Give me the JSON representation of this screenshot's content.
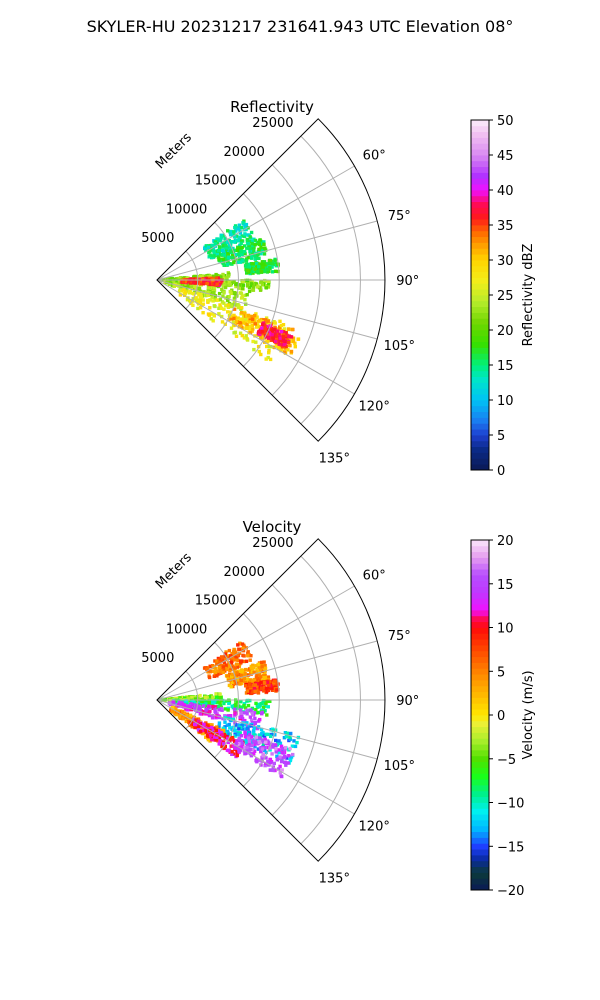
{
  "figure": {
    "title": "SKYLER-HU  20231217  231641.943 UTC Elevation 08°"
  },
  "colors": {
    "grid": "#b0b0b0",
    "frame": "#000000",
    "background": "#ffffff"
  },
  "chart_data": [
    {
      "type": "heatmap",
      "projection": "polar sector (PPI)",
      "title": "Reflectivity",
      "radial_axis_label": "Meters",
      "radial_ticks": [
        5000,
        10000,
        15000,
        20000,
        25000
      ],
      "radial_tick_labels": [
        "5000",
        "10000",
        "15000",
        "20000",
        "25000"
      ],
      "rlim": [
        0,
        28000
      ],
      "angular_range_deg": [
        45,
        135
      ],
      "angular_ticks_deg": [
        60,
        75,
        90,
        105,
        120,
        135
      ],
      "angular_tick_labels": [
        "60°",
        "75°",
        "90°",
        "105°",
        "120°",
        "135°"
      ],
      "grid": true,
      "colorbar": {
        "label": "Reflectivity dBZ",
        "range": [
          0,
          50
        ],
        "ticks": [
          0,
          5,
          10,
          15,
          20,
          25,
          30,
          35,
          40,
          45,
          50
        ],
        "tick_labels": [
          "0",
          "5",
          "10",
          "15",
          "20",
          "25",
          "30",
          "35",
          "40",
          "45",
          "50"
        ],
        "colormap_stops": [
          [
            0,
            "#0b1a55"
          ],
          [
            3,
            "#0a2a88"
          ],
          [
            5,
            "#1e3fd0"
          ],
          [
            7,
            "#1a7cf0"
          ],
          [
            10,
            "#00c2f5"
          ],
          [
            13,
            "#00e6c8"
          ],
          [
            15,
            "#00f07a"
          ],
          [
            18,
            "#38e000"
          ],
          [
            21,
            "#6fd600"
          ],
          [
            24,
            "#b5ec2b"
          ],
          [
            27,
            "#f3ee1a"
          ],
          [
            30,
            "#ffd400"
          ],
          [
            32,
            "#ffa300"
          ],
          [
            34,
            "#ff6a00"
          ],
          [
            36,
            "#ff1a1a"
          ],
          [
            38,
            "#ff0a55"
          ],
          [
            40,
            "#f010ff"
          ],
          [
            42,
            "#b030ff"
          ],
          [
            45,
            "#d98af2"
          ],
          [
            48,
            "#f2c0f2"
          ],
          [
            50,
            "#fbeefb"
          ]
        ]
      },
      "echo_regions": [
        {
          "az": [
            55,
            68
          ],
          "r": [
            7000,
            13000
          ],
          "value": 14
        },
        {
          "az": [
            68,
            78
          ],
          "r": [
            8000,
            14000
          ],
          "value": 16
        },
        {
          "az": [
            80,
            86
          ],
          "r": [
            11000,
            15000
          ],
          "value": 17
        },
        {
          "az": [
            84,
            92
          ],
          "r": [
            500,
            9000
          ],
          "value": 22
        },
        {
          "az": [
            90,
            96
          ],
          "r": [
            2000,
            14000
          ],
          "value": 22
        },
        {
          "az": [
            96,
            110
          ],
          "r": [
            1000,
            12000
          ],
          "value": 23
        },
        {
          "az": [
            108,
            126
          ],
          "r": [
            3000,
            17000
          ],
          "value": 27
        },
        {
          "az": [
            110,
            120
          ],
          "r": [
            10000,
            19000
          ],
          "value": 31
        },
        {
          "az": [
            88,
            95
          ],
          "r": [
            3000,
            8000
          ],
          "value": 36
        },
        {
          "az": [
            112,
            118
          ],
          "r": [
            14000,
            18000
          ],
          "value": 37
        }
      ]
    },
    {
      "type": "heatmap",
      "projection": "polar sector (PPI)",
      "title": "Velocity",
      "radial_axis_label": "Meters",
      "radial_ticks": [
        5000,
        10000,
        15000,
        20000,
        25000
      ],
      "radial_tick_labels": [
        "5000",
        "10000",
        "15000",
        "20000",
        "25000"
      ],
      "rlim": [
        0,
        28000
      ],
      "angular_range_deg": [
        45,
        135
      ],
      "angular_ticks_deg": [
        60,
        75,
        90,
        105,
        120,
        135
      ],
      "angular_tick_labels": [
        "60°",
        "75°",
        "90°",
        "105°",
        "120°",
        "135°"
      ],
      "grid": true,
      "colorbar": {
        "label": "Velocity (m/s)",
        "range": [
          -20,
          20
        ],
        "ticks": [
          -20,
          -15,
          -10,
          -5,
          0,
          5,
          10,
          15,
          20
        ],
        "tick_labels": [
          "−20",
          "−15",
          "−10",
          "−5",
          "0",
          "5",
          "10",
          "15",
          "20"
        ],
        "colormap_stops": [
          [
            -20,
            "#0b1a55"
          ],
          [
            -18,
            "#0b3a3a"
          ],
          [
            -16.5,
            "#0a2aa0"
          ],
          [
            -15,
            "#1e3fff"
          ],
          [
            -13,
            "#00b8ff"
          ],
          [
            -11,
            "#00f0f0"
          ],
          [
            -9,
            "#00f08a"
          ],
          [
            -7,
            "#1aff1a"
          ],
          [
            -5,
            "#52e000"
          ],
          [
            -3,
            "#a6ee2a"
          ],
          [
            -1,
            "#eaf035"
          ],
          [
            0,
            "#ffe800"
          ],
          [
            2,
            "#ffbf00"
          ],
          [
            4,
            "#ff9800"
          ],
          [
            6,
            "#ff6a00"
          ],
          [
            8,
            "#ff3b00"
          ],
          [
            10,
            "#ff0a0a"
          ],
          [
            11,
            "#ff0a55"
          ],
          [
            12,
            "#f010ff"
          ],
          [
            14,
            "#c038ff"
          ],
          [
            16,
            "#b64dff"
          ],
          [
            18,
            "#e59cef"
          ],
          [
            20,
            "#fbe6fb"
          ]
        ]
      },
      "echo_regions": [
        {
          "az": [
            55,
            68
          ],
          "r": [
            7000,
            13000
          ],
          "value": 6
        },
        {
          "az": [
            70,
            80
          ],
          "r": [
            9000,
            14000
          ],
          "value": 4
        },
        {
          "az": [
            80,
            86
          ],
          "r": [
            11000,
            15000
          ],
          "value": 8
        },
        {
          "az": [
            84,
            92
          ],
          "r": [
            500,
            8000
          ],
          "value": -4
        },
        {
          "az": [
            90,
            98
          ],
          "r": [
            2000,
            14000
          ],
          "value": -8
        },
        {
          "az": [
            96,
            108
          ],
          "r": [
            1500,
            13000
          ],
          "value": 14
        },
        {
          "az": [
            104,
            116
          ],
          "r": [
            8000,
            18000
          ],
          "value": -12
        },
        {
          "az": [
            114,
            128
          ],
          "r": [
            2000,
            9000
          ],
          "value": 4
        },
        {
          "az": [
            116,
            126
          ],
          "r": [
            5000,
            12000
          ],
          "value": 11
        },
        {
          "az": [
            110,
            122
          ],
          "r": [
            11000,
            18000
          ],
          "value": 15
        }
      ]
    }
  ]
}
